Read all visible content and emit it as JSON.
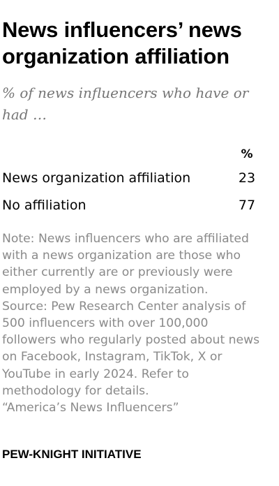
{
  "header": {
    "title_line1": "News influencers’ news",
    "title_line2": "organization affiliation",
    "subtitle_line1": "% of news influencers who have or",
    "subtitle_line2": "had …"
  },
  "chart_data": {
    "type": "table",
    "title": "News influencers’ news organization affiliation",
    "subtitle": "% of news influencers who have or had …",
    "column_header": "%",
    "rows": [
      {
        "label": "News organization affiliation",
        "value": 23
      },
      {
        "label": "No affiliation",
        "value": 77
      }
    ]
  },
  "notes": {
    "lines": [
      "Note: News influencers who are affiliated",
      "with a news organization are those who",
      "either currently are or previously were",
      "employed by a news organization.",
      "Source: Pew Research Center analysis of",
      "500 influencers with over 100,000",
      "followers who regularly posted about news",
      "on Facebook, Instagram, TikTok, X or",
      "YouTube in early 2024. Refer to",
      "methodology for details.",
      "“America’s News Influencers”"
    ]
  },
  "footer": {
    "brand": "PEW-KNIGHT INITIATIVE"
  }
}
